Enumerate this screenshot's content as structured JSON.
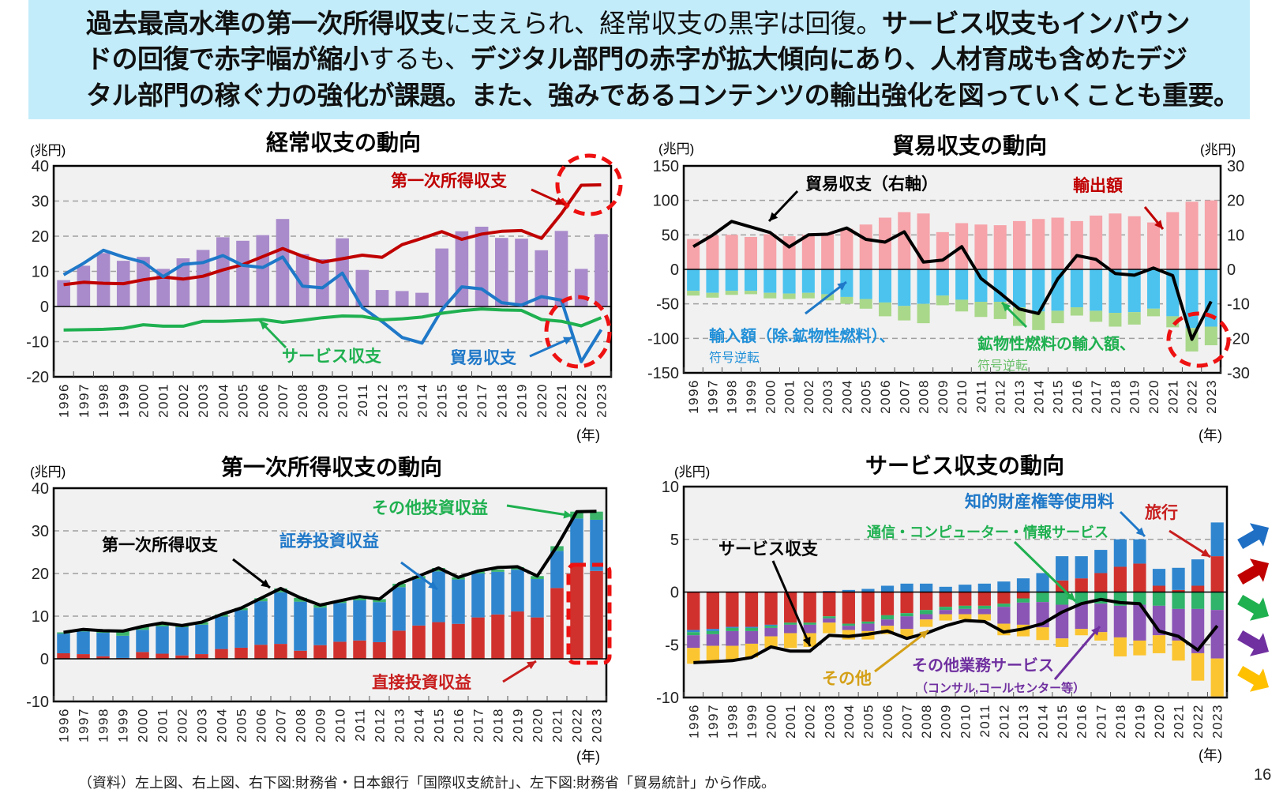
{
  "header": {
    "lines": [
      [
        {
          "t": "過去最高水準の第一次所得収支",
          "b": true
        },
        {
          "t": "に支えられ、経常収支の黒字は回復。",
          "b": false
        },
        {
          "t": "サービス収支もインバウン",
          "b": true
        }
      ],
      [
        {
          "t": "ドの回復で赤字幅が縮小",
          "b": true
        },
        {
          "t": "するも、",
          "b": false
        },
        {
          "t": "デジタル部門の赤字が拡大傾向にあり、人材育成も含めたデジ",
          "b": true
        }
      ],
      [
        {
          "t": "タル部門の稼ぐ力の強化が課題。また、強みであるコンテンツの輸出強化を図っていくことも重要。",
          "b": true
        }
      ]
    ],
    "bg_color": "#c3ecfa"
  },
  "footer": {
    "source": "（資料）左上図、右上図、右下図:財務省・日本銀行「国際収支統計」、左下図:財務省「貿易統計」から作成。",
    "page": "16"
  },
  "legend_arrows": {
    "colors": [
      "#1f6fc4",
      "#c00000",
      "#1fb050",
      "#7030a0",
      "#ffc000"
    ]
  },
  "chart_data": [
    {
      "type": "bar+line",
      "title": "経常収支の動向",
      "ylabel": "(兆円)",
      "xlabel": "(年)",
      "ylim": [
        -20,
        40
      ],
      "ytick_step": 10,
      "grid": true,
      "categories": [
        "1996",
        "1997",
        "1998",
        "1999",
        "2000",
        "2001",
        "2002",
        "2003",
        "2004",
        "2005",
        "2006",
        "2007",
        "2008",
        "2009",
        "2010",
        "2011",
        "2012",
        "2013",
        "2014",
        "2015",
        "2016",
        "2017",
        "2018",
        "2019",
        "2020",
        "2021",
        "2022",
        "2023"
      ],
      "series": [
        {
          "name": "経常収支",
          "kind": "bar",
          "color": "#a98bcb",
          "values": [
            7.5,
            11.6,
            15.2,
            13.0,
            14.1,
            10.7,
            13.7,
            16.1,
            19.7,
            18.7,
            20.3,
            24.9,
            14.9,
            13.5,
            19.4,
            10.4,
            4.7,
            4.4,
            3.9,
            16.5,
            21.4,
            22.7,
            19.5,
            19.3,
            16.0,
            21.5,
            10.7,
            20.6
          ]
        },
        {
          "name": "第一次所得収支",
          "kind": "line",
          "color": "#c00000",
          "values": [
            6.2,
            6.9,
            6.6,
            6.5,
            7.6,
            8.4,
            7.8,
            8.6,
            10.4,
            11.9,
            14.2,
            16.5,
            14.3,
            12.6,
            13.6,
            14.6,
            14.0,
            17.6,
            19.4,
            21.3,
            19.1,
            20.6,
            21.4,
            21.6,
            19.4,
            26.4,
            34.5,
            34.6
          ]
        },
        {
          "name": "貿易収支",
          "kind": "line",
          "color": "#1f78c8",
          "values": [
            9.0,
            12.3,
            16.0,
            14.1,
            12.6,
            8.5,
            12.0,
            12.5,
            14.5,
            11.7,
            11.1,
            14.1,
            5.8,
            5.3,
            9.5,
            -0.3,
            -4.3,
            -8.8,
            -10.4,
            -0.9,
            5.6,
            5.0,
            1.1,
            0.4,
            2.8,
            1.8,
            -15.7,
            -6.6
          ]
        },
        {
          "name": "サービス収支",
          "kind": "line",
          "color": "#1fb050",
          "values": [
            -6.7,
            -6.6,
            -6.5,
            -6.2,
            -5.2,
            -5.6,
            -5.6,
            -4.2,
            -4.2,
            -4.0,
            -3.7,
            -4.5,
            -3.9,
            -3.2,
            -2.7,
            -2.8,
            -3.8,
            -3.5,
            -3.0,
            -1.9,
            -1.2,
            -0.7,
            -1.0,
            -1.1,
            -3.7,
            -4.2,
            -5.5,
            -3.2
          ]
        }
      ],
      "annotations": {
        "primary": "第一次所得収支",
        "services": "サービス収支",
        "trade": "貿易収支"
      }
    },
    {
      "type": "bar+line",
      "title": "貿易収支の動向",
      "ylabel": "(兆円)",
      "ylabel_right": "(兆円)",
      "xlabel": "(年)",
      "ylim": [
        -150,
        150
      ],
      "ytick_step": 50,
      "ylim_right": [
        -30,
        30
      ],
      "ytick_step_right": 10,
      "grid": true,
      "categories": [
        "1996",
        "1997",
        "1998",
        "1999",
        "2000",
        "2001",
        "2002",
        "2003",
        "2004",
        "2005",
        "2006",
        "2007",
        "2008",
        "2009",
        "2010",
        "2011",
        "2012",
        "2013",
        "2014",
        "2015",
        "2016",
        "2017",
        "2018",
        "2019",
        "2020",
        "2021",
        "2022",
        "2023"
      ],
      "series": [
        {
          "name": "輸出額",
          "kind": "bar",
          "color": "#f6a3a9",
          "values": [
            44,
            49,
            50,
            47,
            51,
            48,
            50,
            53,
            59,
            65,
            75,
            83,
            81,
            54,
            67,
            65,
            64,
            70,
            73,
            75,
            70,
            78,
            81,
            77,
            68,
            83,
            98,
            100
          ]
        },
        {
          "name": "輸入額（除.鉱物性燃料）",
          "kind": "bar",
          "color": "#4cc3ef",
          "values": [
            -31,
            -34,
            -31,
            -31,
            -34,
            -35,
            -34,
            -36,
            -40,
            -43,
            -48,
            -53,
            -50,
            -38,
            -44,
            -47,
            -47,
            -55,
            -61,
            -60,
            -55,
            -60,
            -63,
            -62,
            -57,
            -68,
            -85,
            -83
          ]
        },
        {
          "name": "鉱物性燃料の輸入額",
          "kind": "bar",
          "color": "#a9d88a",
          "values": [
            -7,
            -7,
            -6,
            -5,
            -8,
            -8,
            -8,
            -9,
            -10,
            -14,
            -20,
            -21,
            -28,
            -14,
            -17,
            -22,
            -25,
            -27,
            -27,
            -18,
            -12,
            -16,
            -20,
            -18,
            -11,
            -16,
            -34,
            -27
          ]
        },
        {
          "name": "貿易収支（右軸）",
          "kind": "line",
          "axis": "right",
          "color": "#000000",
          "values": [
            6.6,
            9.9,
            13.9,
            12.3,
            10.7,
            6.5,
            10.0,
            10.2,
            12.0,
            8.7,
            7.9,
            10.9,
            2.1,
            2.7,
            6.6,
            -2.6,
            -6.9,
            -11.5,
            -12.8,
            -2.8,
            4.0,
            2.9,
            -1.2,
            -1.7,
            0.4,
            -1.8,
            -20.3,
            -9.3
          ]
        }
      ],
      "annotations": {
        "trade": "貿易収支（右軸）",
        "exports": "輸出額",
        "imports": "輸入額（除.鉱物性燃料）、",
        "imports_note": "符号逆転",
        "fuel": "鉱物性燃料の輸入額、",
        "fuel_note": "符号逆転"
      }
    },
    {
      "type": "stacked-bar+line",
      "title": "第一次所得収支の動向",
      "ylabel": "(兆円)",
      "xlabel": "(年)",
      "ylim": [
        -10,
        40
      ],
      "ytick_step": 10,
      "grid": true,
      "categories": [
        "1996",
        "1997",
        "1998",
        "1999",
        "2000",
        "2001",
        "2002",
        "2003",
        "2004",
        "2005",
        "2006",
        "2007",
        "2008",
        "2009",
        "2010",
        "2011",
        "2012",
        "2013",
        "2014",
        "2015",
        "2016",
        "2017",
        "2018",
        "2019",
        "2020",
        "2021",
        "2022",
        "2023"
      ],
      "series": [
        {
          "name": "直接投資収益",
          "kind": "bar",
          "color": "#d0312d",
          "values": [
            1.3,
            1.1,
            0.6,
            0.2,
            1.6,
            1.2,
            0.8,
            1.1,
            2.3,
            2.6,
            3.3,
            3.5,
            1.9,
            3.2,
            4.0,
            4.3,
            3.9,
            6.6,
            7.8,
            8.6,
            8.2,
            9.7,
            10.4,
            11.1,
            9.7,
            16.6,
            22.5,
            20.6
          ]
        },
        {
          "name": "証券投資収益",
          "kind": "bar",
          "color": "#2f86cf",
          "values": [
            4.6,
            5.3,
            5.5,
            5.2,
            5.2,
            6.4,
            6.6,
            6.9,
            7.6,
            8.8,
            10.2,
            12.1,
            11.5,
            8.8,
            9.1,
            9.4,
            9.4,
            10.2,
            10.9,
            11.9,
            10.4,
            10.3,
            10.0,
            9.8,
            9.0,
            8.7,
            10.4,
            12.0
          ]
        },
        {
          "name": "その他投資収益",
          "kind": "bar",
          "color": "#3cb46a",
          "values": [
            0.3,
            0.5,
            0.5,
            1.1,
            0.8,
            0.8,
            0.4,
            0.6,
            0.5,
            0.5,
            0.7,
            0.9,
            0.9,
            0.6,
            0.5,
            0.9,
            0.7,
            0.8,
            0.7,
            0.8,
            0.5,
            0.6,
            0.5,
            0.6,
            0.7,
            1.1,
            1.6,
            1.9
          ]
        },
        {
          "name": "第一次所得収支",
          "kind": "line",
          "color": "#000000",
          "values": [
            6.2,
            6.9,
            6.6,
            6.5,
            7.6,
            8.4,
            7.8,
            8.6,
            10.4,
            11.9,
            14.2,
            16.5,
            14.3,
            12.6,
            13.6,
            14.6,
            14.0,
            17.6,
            19.4,
            21.3,
            19.1,
            20.6,
            21.4,
            21.6,
            19.4,
            26.4,
            34.5,
            34.6
          ]
        }
      ],
      "annotations": {
        "other": "その他投資収益",
        "portfolio": "証券投資収益",
        "primary": "第一次所得収支",
        "direct": "直接投資収益"
      }
    },
    {
      "type": "stacked-bar+line",
      "title": "サービス収支の動向",
      "ylabel": "(兆円)",
      "xlabel": "(年)",
      "ylim": [
        -10,
        10
      ],
      "ytick_step": 5,
      "grid": true,
      "categories": [
        "1996",
        "1997",
        "1998",
        "1999",
        "2000",
        "2001",
        "2002",
        "2003",
        "2004",
        "2005",
        "2006",
        "2007",
        "2008",
        "2009",
        "2010",
        "2011",
        "2012",
        "2013",
        "2014",
        "2015",
        "2016",
        "2017",
        "2018",
        "2019",
        "2020",
        "2021",
        "2022",
        "2023"
      ],
      "series": [
        {
          "name": "旅行",
          "kind": "bar",
          "color": "#d0312d",
          "values": [
            -3.6,
            -3.5,
            -3.3,
            -3.3,
            -3.1,
            -2.9,
            -2.9,
            -2.3,
            -3.0,
            -2.8,
            -2.2,
            -2.0,
            -1.7,
            -1.4,
            -1.3,
            -1.3,
            -1.1,
            -0.6,
            -0.05,
            1.1,
            1.3,
            1.8,
            2.4,
            2.7,
            0.6,
            0.2,
            0.6,
            3.4
          ]
        },
        {
          "name": "知的財産権等使用料",
          "kind": "bar",
          "color": "#2f86cf",
          "values": [
            -0.2,
            -0.2,
            -0.1,
            -0.1,
            -0.1,
            0.0,
            0.0,
            0.1,
            0.2,
            0.3,
            0.6,
            0.8,
            0.8,
            0.5,
            0.7,
            0.8,
            1.0,
            1.3,
            1.8,
            2.3,
            2.1,
            2.2,
            2.6,
            2.3,
            1.6,
            2.1,
            2.5,
            3.2
          ]
        },
        {
          "name": "通信・コンピューター・情報サービス",
          "kind": "bar",
          "color": "#30b36a",
          "values": [
            -0.3,
            -0.3,
            -0.3,
            -0.3,
            -0.2,
            -0.2,
            -0.2,
            -0.2,
            -0.2,
            -0.2,
            -0.4,
            -0.3,
            -0.4,
            -0.3,
            -0.3,
            -0.3,
            -0.3,
            -0.4,
            -0.9,
            -1.2,
            -1.1,
            -1.1,
            -1.3,
            -1.2,
            -1.3,
            -1.6,
            -1.6,
            -1.7
          ]
        },
        {
          "name": "その他業務サービス（コンサル,コールセンター等）",
          "kind": "bar",
          "color": "#8a55b5",
          "values": [
            -1.2,
            -1.1,
            -1.4,
            -1.2,
            -0.8,
            -0.8,
            -0.8,
            -0.4,
            -0.4,
            -0.7,
            -0.6,
            -1.2,
            -0.5,
            -0.4,
            -0.5,
            -0.5,
            -1.6,
            -2.1,
            -2.4,
            -3.2,
            -2.4,
            -2.7,
            -3.0,
            -3.4,
            -2.8,
            -3.0,
            -4.2,
            -4.6
          ]
        },
        {
          "name": "その他",
          "kind": "bar",
          "color": "#fbc531",
          "values": [
            -1.5,
            -1.5,
            -1.4,
            -1.3,
            -1.1,
            -1.4,
            -1.3,
            -1.0,
            -0.9,
            -0.8,
            -0.8,
            -0.8,
            -0.7,
            -0.6,
            -0.5,
            -0.6,
            -1.1,
            -1.1,
            -1.2,
            -0.8,
            -0.6,
            -0.8,
            -1.8,
            -1.4,
            -1.7,
            -1.9,
            -2.6,
            -3.6
          ]
        },
        {
          "name": "サービス収支",
          "kind": "line",
          "color": "#000000",
          "values": [
            -6.7,
            -6.6,
            -6.5,
            -6.2,
            -5.2,
            -5.6,
            -5.6,
            -4.1,
            -4.2,
            -4.0,
            -3.7,
            -4.4,
            -3.9,
            -3.2,
            -2.7,
            -2.8,
            -3.8,
            -3.5,
            -3.0,
            -1.9,
            -1.1,
            -0.7,
            -1.0,
            -1.1,
            -3.7,
            -4.2,
            -5.5,
            -3.2
          ]
        }
      ],
      "annotations": {
        "ip": "知的財産権等使用料",
        "travel": "旅行",
        "telecom": "通信・コンピューター・情報サービス",
        "services": "サービス収支",
        "other": "その他",
        "otherbiz": "その他業務サービス",
        "otherbiz_note": "（コンサル,コールセンター等）"
      }
    }
  ]
}
